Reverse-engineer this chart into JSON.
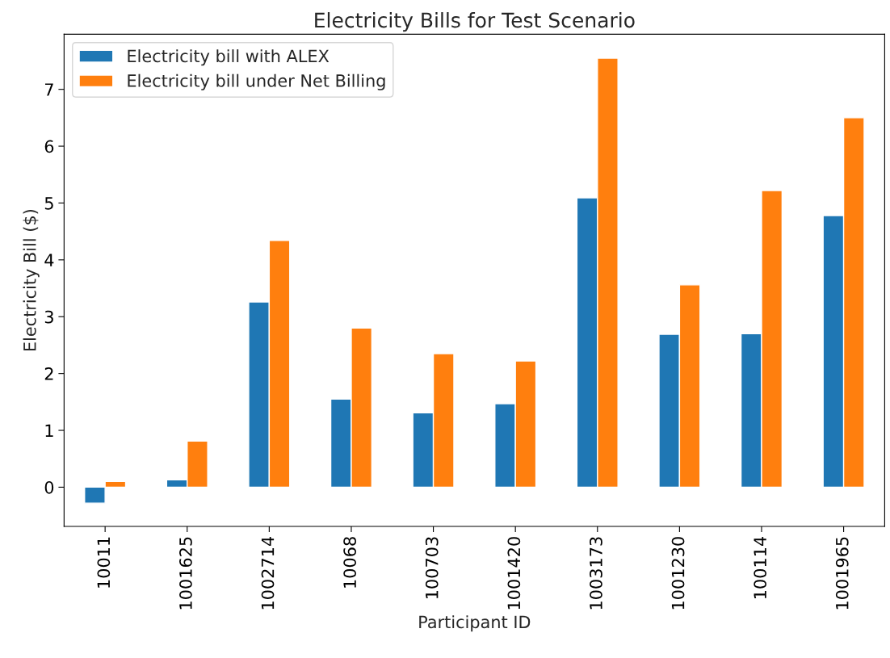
{
  "chart_data": {
    "type": "bar",
    "title": "Electricity Bills for Test Scenario",
    "xlabel": "Participant ID",
    "ylabel": "Electricity Bill ($)",
    "categories": [
      "10011",
      "1001625",
      "1002714",
      "10068",
      "100703",
      "1001420",
      "1003173",
      "1001230",
      "100114",
      "1001965"
    ],
    "series": [
      {
        "name": "Electricity bill with ALEX",
        "color": "#1f77b4",
        "values": [
          -0.28,
          0.13,
          3.26,
          1.55,
          1.31,
          1.47,
          5.09,
          2.69,
          2.7,
          4.78
        ]
      },
      {
        "name": "Electricity bill under Net Billing",
        "color": "#ff7f0e",
        "values": [
          0.1,
          0.81,
          4.34,
          2.8,
          2.35,
          2.22,
          7.55,
          3.56,
          5.22,
          6.5
        ]
      }
    ],
    "ylim": [
      -0.69,
      7.97
    ],
    "yticks": [
      0,
      1,
      2,
      3,
      4,
      5,
      6,
      7
    ],
    "legend": "top left",
    "grid": false
  }
}
